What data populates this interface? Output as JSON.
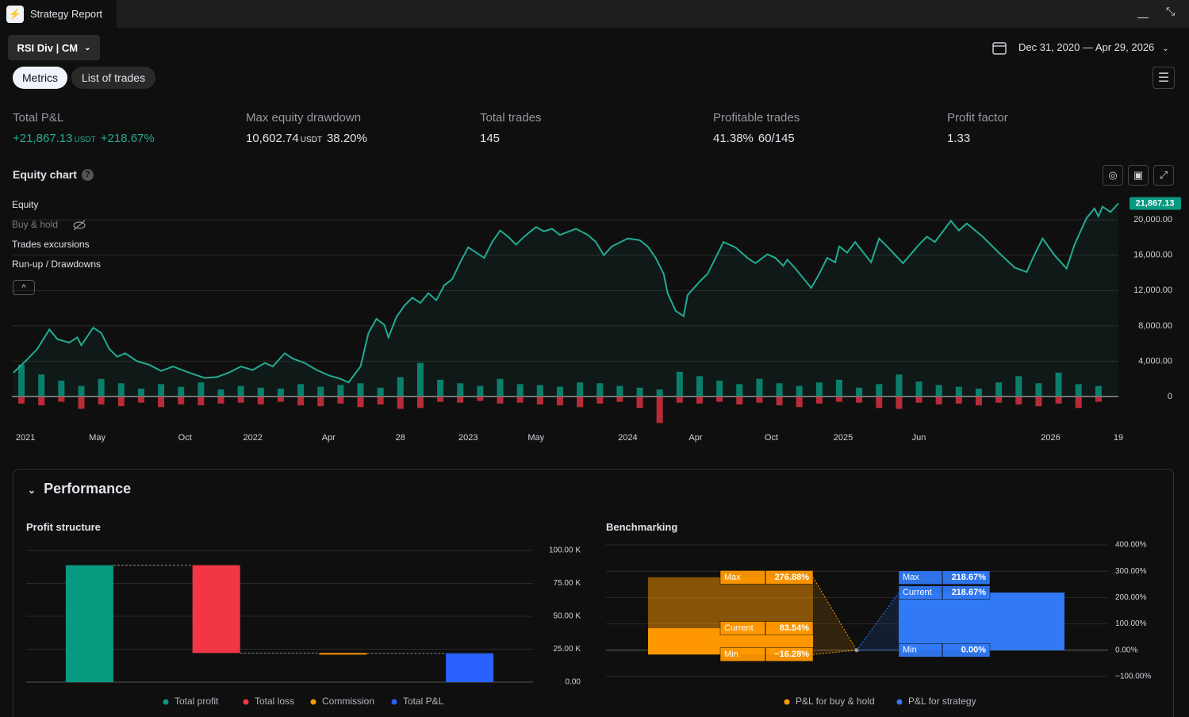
{
  "header": {
    "title": "Strategy Report"
  },
  "toolbar": {
    "strategy": "RSI Div | CM",
    "date_range": "Dec 31, 2020 — Apr 29, 2026"
  },
  "tabs": [
    "Metrics",
    "List of trades"
  ],
  "metrics": [
    {
      "label": "Total P&L",
      "value": "+21,867.13",
      "unit": "USDT",
      "percent": "+218.67%"
    },
    {
      "label": "Max equity drawdown",
      "value": "10,602.74",
      "unit": "USDT",
      "percent": "38.20%"
    },
    {
      "label": "Total trades",
      "value": "145"
    },
    {
      "label": "Profitable trades",
      "value": "41.38%",
      "extra": "60/145"
    },
    {
      "label": "Profit factor",
      "value": "1.33"
    }
  ],
  "section_title": "Performance",
  "chart_data": [
    {
      "type": "line",
      "title": "Equity chart",
      "legend_items": [
        "Buy & hold",
        "Trades excursions"
      ],
      "last_label": "21,867.13",
      "xlim": [
        0,
        277
      ],
      "xticks": [
        {
          "value": 3,
          "label": "2021"
        },
        {
          "value": 21,
          "label": "May"
        },
        {
          "value": 43,
          "label": "Oct"
        },
        {
          "value": 60,
          "label": "2022"
        },
        {
          "value": 79,
          "label": "Apr"
        },
        {
          "value": 97,
          "label": "28"
        },
        {
          "value": 114,
          "label": "2023"
        },
        {
          "value": 131,
          "label": "May"
        },
        {
          "value": 154,
          "label": "2024"
        },
        {
          "value": 171,
          "label": "Apr"
        },
        {
          "value": 190,
          "label": "Oct"
        },
        {
          "value": 208,
          "label": "2025"
        },
        {
          "value": 227,
          "label": "Jun"
        },
        {
          "value": 260,
          "label": "2026"
        },
        {
          "value": 277,
          "label": "19"
        }
      ],
      "ylim": [
        -3600,
        22900
      ],
      "yticks": [
        0,
        {
          "value": 4000,
          "label": "4,000.00"
        },
        {
          "value": 8000,
          "label": "8,000.00"
        },
        {
          "value": 12000,
          "label": "12,000.00"
        },
        {
          "value": 16000,
          "label": "16,000.00"
        },
        {
          "value": 20000,
          "label": "20,000.00"
        }
      ],
      "grid": true,
      "series": [
        {
          "name": "Equity",
          "color": "#22ab94",
          "x": [
            0,
            3,
            6,
            9,
            11,
            14,
            16,
            17,
            20,
            22,
            24,
            26,
            28,
            31,
            34,
            37,
            40,
            44,
            48,
            51,
            54,
            57,
            60,
            63,
            65,
            68,
            70,
            73,
            76,
            79,
            82,
            84,
            87,
            89,
            91,
            93,
            94,
            96,
            98,
            100,
            102,
            104,
            106,
            108,
            110,
            112,
            114,
            116,
            118,
            120,
            122,
            124,
            126,
            128,
            131,
            133,
            135,
            137,
            141,
            144,
            146,
            148,
            150,
            154,
            157,
            159,
            161,
            163,
            164,
            166,
            168,
            169,
            172,
            174,
            176,
            178,
            181,
            184,
            186,
            189,
            191,
            193,
            194,
            196,
            200,
            202,
            204,
            206,
            207,
            209,
            211,
            215,
            217,
            219,
            223,
            227,
            229,
            231,
            235,
            237,
            239,
            243,
            247,
            251,
            254,
            256,
            258,
            261,
            264,
            266,
            269,
            271,
            272,
            273,
            275,
            277
          ],
          "values": [
            2700,
            4000,
            5400,
            7600,
            6500,
            6100,
            6700,
            5800,
            7800,
            7200,
            5400,
            4500,
            4900,
            4000,
            3600,
            2900,
            3400,
            2700,
            2100,
            2200,
            2700,
            3400,
            3000,
            3800,
            3400,
            4900,
            4300,
            3800,
            3000,
            2400,
            2000,
            1600,
            3400,
            7200,
            8800,
            8100,
            6700,
            9000,
            10300,
            11200,
            10600,
            11700,
            10900,
            12600,
            13300,
            15200,
            16900,
            16300,
            15700,
            17500,
            18800,
            18100,
            17200,
            18100,
            19200,
            18700,
            19000,
            18300,
            19000,
            18300,
            17500,
            16000,
            17000,
            17900,
            17700,
            17000,
            15700,
            13900,
            11700,
            9700,
            9100,
            11500,
            13000,
            13900,
            15700,
            17500,
            16900,
            15700,
            15100,
            16100,
            15700,
            14800,
            15500,
            14500,
            12300,
            13900,
            15700,
            15200,
            17000,
            16300,
            17500,
            15200,
            17900,
            17000,
            15100,
            17200,
            18100,
            17500,
            19900,
            18800,
            19600,
            18100,
            16300,
            14600,
            14100,
            16100,
            17900,
            16000,
            14500,
            17200,
            20200,
            21300,
            20400,
            21500,
            20900,
            21867.13
          ]
        }
      ],
      "bars": {
        "name": "Run-up / Drawdowns",
        "up_color": "#089981",
        "down_color": "#f23645",
        "x": [
          2,
          7,
          12,
          17,
          22,
          27,
          32,
          37,
          42,
          47,
          52,
          57,
          62,
          67,
          72,
          77,
          82,
          87,
          92,
          97,
          102,
          107,
          112,
          117,
          122,
          127,
          132,
          137,
          142,
          147,
          152,
          157,
          162,
          167,
          172,
          177,
          182,
          187,
          192,
          197,
          202,
          207,
          212,
          217,
          222,
          227,
          232,
          237,
          242,
          247,
          252,
          257,
          262,
          267,
          272
        ],
        "runup": [
          3600,
          2500,
          1800,
          1200,
          2000,
          1500,
          900,
          1400,
          1100,
          1600,
          800,
          1200,
          1000,
          900,
          1400,
          1100,
          1300,
          1500,
          1000,
          2200,
          3800,
          1900,
          1500,
          1200,
          2000,
          1400,
          1300,
          1100,
          1600,
          1500,
          1200,
          1000,
          800,
          2800,
          2300,
          1800,
          1400,
          2000,
          1500,
          1200,
          1600,
          1900,
          1000,
          1400,
          2500,
          1700,
          1300,
          1100,
          900,
          1600,
          2300,
          1500,
          2700,
          1400,
          1200
        ],
        "drawdown": [
          -800,
          -1000,
          -600,
          -1400,
          -900,
          -1100,
          -700,
          -1200,
          -900,
          -1000,
          -800,
          -700,
          -900,
          -600,
          -1000,
          -1100,
          -800,
          -1200,
          -900,
          -1400,
          -1300,
          -600,
          -700,
          -500,
          -800,
          -700,
          -900,
          -1000,
          -1200,
          -800,
          -600,
          -1300,
          -3000,
          -700,
          -800,
          -600,
          -900,
          -700,
          -1000,
          -1200,
          -800,
          -600,
          -700,
          -1300,
          -1400,
          -700,
          -900,
          -800,
          -1000,
          -700,
          -900,
          -1100,
          -800,
          -1300,
          -600
        ]
      }
    },
    {
      "type": "waterfall",
      "title": "Profit structure",
      "categories": [
        "Total profit",
        "Total loss",
        "Commission",
        "Total P&L"
      ],
      "values": [
        88800,
        -66700,
        -230,
        21870
      ],
      "colors": [
        "#089981",
        "#f23645",
        "#ff9800",
        "#2962ff"
      ],
      "ylim": [
        0,
        100000
      ],
      "yticks": [
        {
          "value": 0,
          "label": "0.00"
        },
        {
          "value": 25000,
          "label": "25.00 K"
        },
        {
          "value": 50000,
          "label": "50.00 K"
        },
        {
          "value": 75000,
          "label": "75.00 K"
        },
        {
          "value": 100000,
          "label": "100.00 K"
        }
      ],
      "grid": true
    },
    {
      "type": "range",
      "title": "Benchmarking",
      "ylim": [
        -100,
        400
      ],
      "yticks": [
        {
          "value": -100,
          "label": "−100.00%"
        },
        {
          "value": 0,
          "label": "0.00%"
        },
        {
          "value": 100,
          "label": "100.00%"
        },
        {
          "value": 200,
          "label": "200.00%"
        },
        {
          "value": 300,
          "label": "300.00%"
        },
        {
          "value": 400,
          "label": "400.00%"
        }
      ],
      "grid": true,
      "field_names": {
        "max": "Max",
        "current": "Current",
        "min": "Min"
      },
      "series": [
        {
          "name": "P&L for buy & hold",
          "color": "#ff9800",
          "max": 276.88,
          "current": 83.54,
          "min": -16.28,
          "value_labels": {
            "max": "276.88%",
            "current": "83.54%",
            "min": "−16.28%"
          }
        },
        {
          "name": "P&L for strategy",
          "color": "#3179f5",
          "max": 218.67,
          "current": 218.67,
          "min": 0,
          "value_labels": {
            "max": "218.67%",
            "current": "218.67%",
            "min": "0.00%"
          }
        }
      ]
    }
  ]
}
